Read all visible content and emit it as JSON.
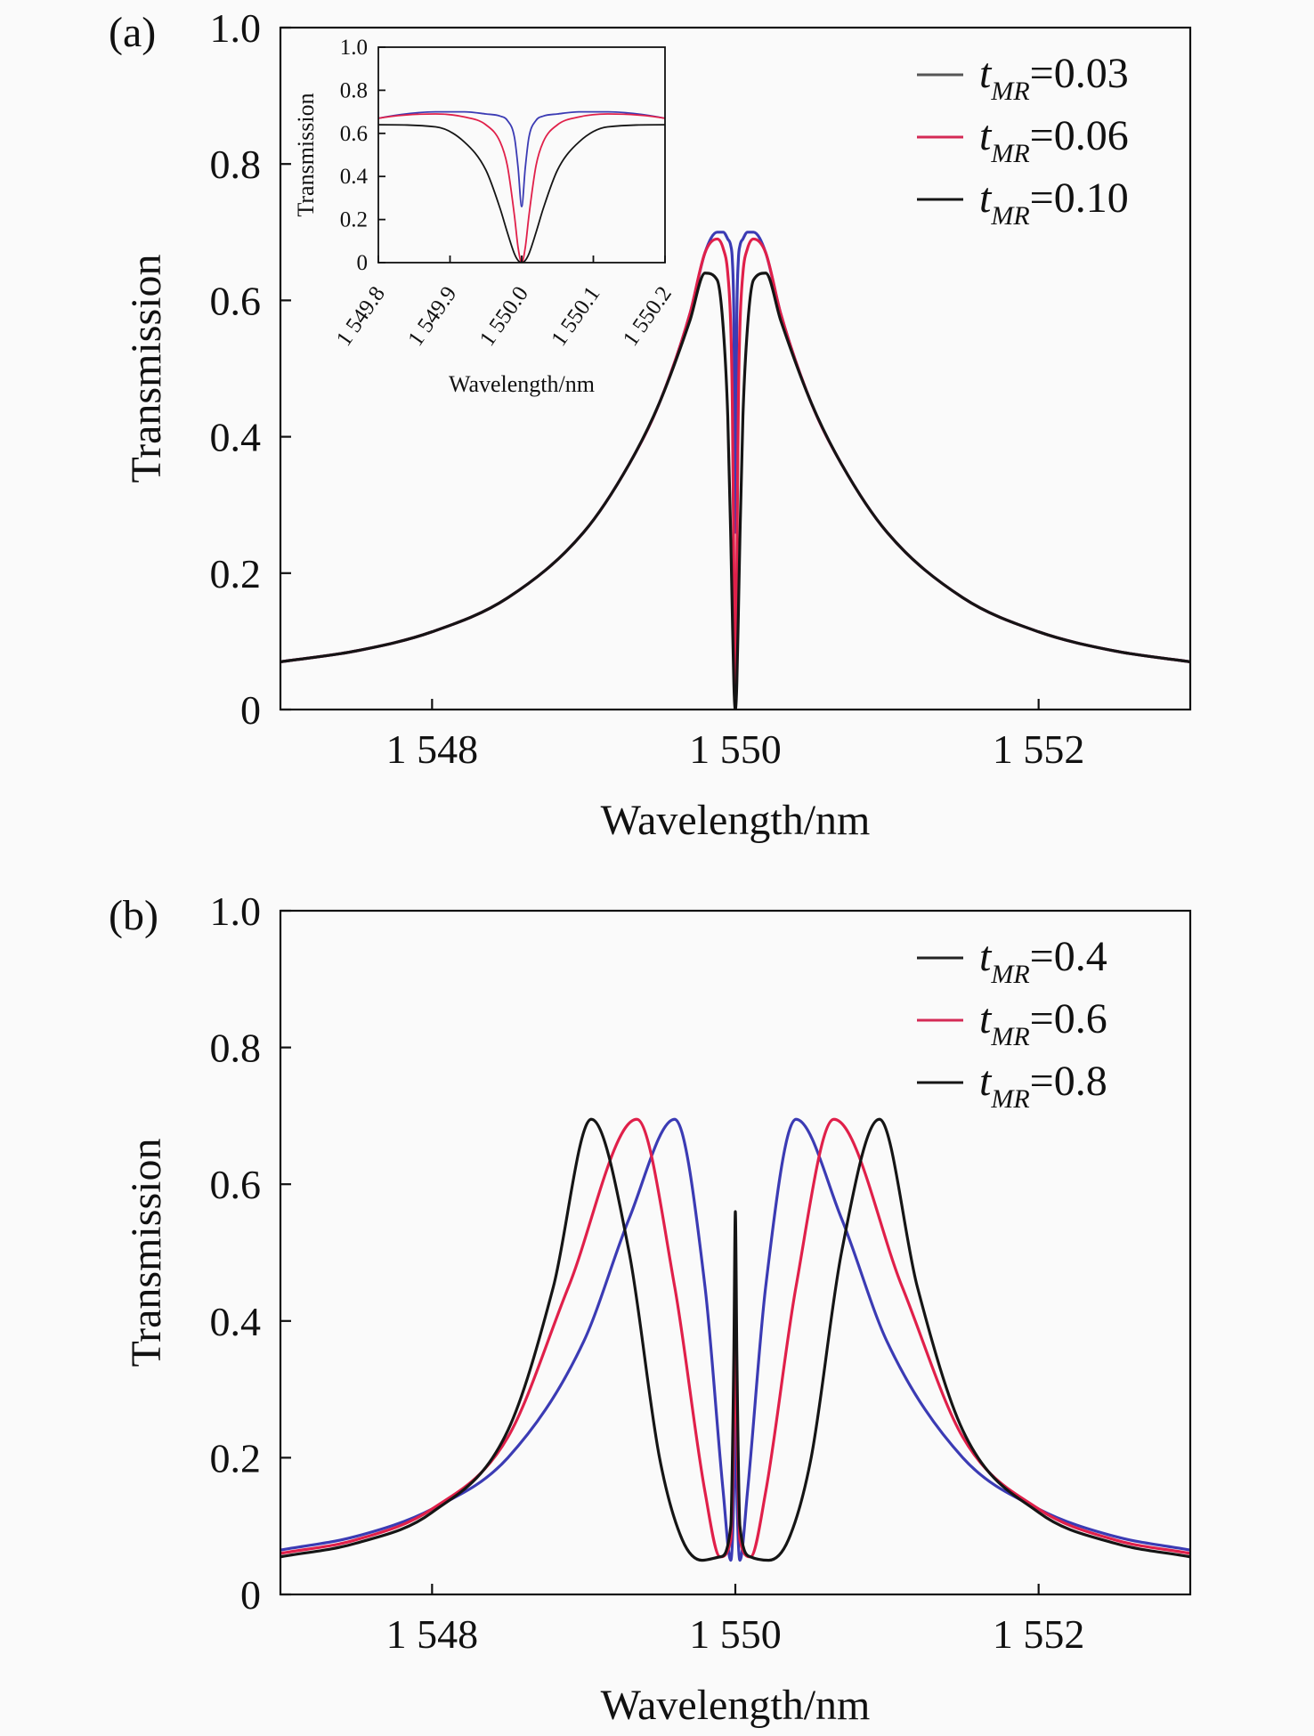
{
  "chart_data": [
    {
      "panel_label": "(a)",
      "type": "line",
      "xlabel": "Wavelength/nm",
      "ylabel": "Transmission",
      "xlim": [
        1547,
        1553
      ],
      "ylim": [
        0,
        1.0
      ],
      "xticks": [
        {
          "v": 1548,
          "label": "1 548"
        },
        {
          "v": 1550,
          "label": "1 550"
        },
        {
          "v": 1552,
          "label": "1 552"
        }
      ],
      "yticks": [
        {
          "v": 0,
          "label": "0"
        },
        {
          "v": 0.2,
          "label": "0.2"
        },
        {
          "v": 0.4,
          "label": "0.4"
        },
        {
          "v": 0.6,
          "label": "0.6"
        },
        {
          "v": 0.8,
          "label": "0.8"
        },
        {
          "v": 1.0,
          "label": "1.0"
        }
      ],
      "grid": false,
      "legend_position": "top-right",
      "series": [
        {
          "name": {
            "var": "t",
            "sub": "MR",
            "value": "=0.03"
          },
          "color": "#3b3bb4",
          "legend_color": "#555555",
          "points": [
            [
              1547,
              0.07
            ],
            [
              1547.5,
              0.086
            ],
            [
              1548,
              0.114
            ],
            [
              1548.5,
              0.164
            ],
            [
              1549,
              0.26
            ],
            [
              1549.3,
              0.36
            ],
            [
              1549.5,
              0.45
            ],
            [
              1549.7,
              0.58
            ],
            [
              1549.8,
              0.67
            ],
            [
              1549.88,
              0.7
            ],
            [
              1549.92,
              0.7
            ],
            [
              1549.95,
              0.69
            ],
            [
              1549.97,
              0.68
            ],
            [
              1549.98,
              0.66
            ],
            [
              1549.99,
              0.58
            ],
            [
              1549.995,
              0.44
            ],
            [
              1550,
              0.26
            ],
            [
              1550.005,
              0.44
            ],
            [
              1550.01,
              0.58
            ],
            [
              1550.02,
              0.66
            ],
            [
              1550.03,
              0.68
            ],
            [
              1550.05,
              0.69
            ],
            [
              1550.08,
              0.7
            ],
            [
              1550.12,
              0.7
            ],
            [
              1550.2,
              0.67
            ],
            [
              1550.3,
              0.58
            ],
            [
              1550.5,
              0.45
            ],
            [
              1550.7,
              0.36
            ],
            [
              1551,
              0.26
            ],
            [
              1551.5,
              0.164
            ],
            [
              1552,
              0.114
            ],
            [
              1552.5,
              0.086
            ],
            [
              1553,
              0.07
            ]
          ]
        },
        {
          "name": {
            "var": "t",
            "sub": "MR",
            "value": "=0.06"
          },
          "color": "#e0204a",
          "legend_color": "#d42a55",
          "points": [
            [
              1547,
              0.07
            ],
            [
              1547.5,
              0.086
            ],
            [
              1548,
              0.114
            ],
            [
              1548.5,
              0.164
            ],
            [
              1549,
              0.26
            ],
            [
              1549.3,
              0.36
            ],
            [
              1549.5,
              0.45
            ],
            [
              1549.7,
              0.58
            ],
            [
              1549.8,
              0.67
            ],
            [
              1549.88,
              0.69
            ],
            [
              1549.92,
              0.676
            ],
            [
              1549.95,
              0.64
            ],
            [
              1549.97,
              0.56
            ],
            [
              1549.98,
              0.45
            ],
            [
              1549.99,
              0.215
            ],
            [
              1549.995,
              0.07
            ],
            [
              1550,
              0
            ],
            [
              1550.005,
              0.07
            ],
            [
              1550.01,
              0.215
            ],
            [
              1550.02,
              0.45
            ],
            [
              1550.03,
              0.56
            ],
            [
              1550.05,
              0.64
            ],
            [
              1550.08,
              0.676
            ],
            [
              1550.12,
              0.69
            ],
            [
              1550.2,
              0.67
            ],
            [
              1550.3,
              0.58
            ],
            [
              1550.5,
              0.45
            ],
            [
              1550.7,
              0.36
            ],
            [
              1551,
              0.26
            ],
            [
              1551.5,
              0.164
            ],
            [
              1552,
              0.114
            ],
            [
              1552.5,
              0.086
            ],
            [
              1553,
              0.07
            ]
          ]
        },
        {
          "name": {
            "var": "t",
            "sub": "MR",
            "value": "=0.10"
          },
          "color": "#151515",
          "legend_color": "#151515",
          "points": [
            [
              1547,
              0.07
            ],
            [
              1547.5,
              0.086
            ],
            [
              1548,
              0.114
            ],
            [
              1548.5,
              0.164
            ],
            [
              1549,
              0.26
            ],
            [
              1549.3,
              0.36
            ],
            [
              1549.5,
              0.45
            ],
            [
              1549.7,
              0.57
            ],
            [
              1549.8,
              0.64
            ],
            [
              1549.88,
              0.63
            ],
            [
              1549.92,
              0.56
            ],
            [
              1549.95,
              0.43
            ],
            [
              1549.97,
              0.25
            ],
            [
              1549.98,
              0.14
            ],
            [
              1549.99,
              0.04
            ],
            [
              1549.995,
              0.01
            ],
            [
              1550,
              0
            ],
            [
              1550.005,
              0.01
            ],
            [
              1550.01,
              0.04
            ],
            [
              1550.02,
              0.14
            ],
            [
              1550.03,
              0.25
            ],
            [
              1550.05,
              0.43
            ],
            [
              1550.08,
              0.56
            ],
            [
              1550.12,
              0.63
            ],
            [
              1550.2,
              0.64
            ],
            [
              1550.3,
              0.57
            ],
            [
              1550.5,
              0.45
            ],
            [
              1550.7,
              0.36
            ],
            [
              1551,
              0.26
            ],
            [
              1551.5,
              0.164
            ],
            [
              1552,
              0.114
            ],
            [
              1552.5,
              0.086
            ],
            [
              1553,
              0.07
            ]
          ]
        }
      ],
      "inset": {
        "xlabel": "Wavelength/nm",
        "ylabel": "Transmission",
        "xlim": [
          1549.8,
          1550.2
        ],
        "ylim": [
          0,
          1.0
        ],
        "xticks": [
          {
            "v": 1549.8,
            "label": "1 549.8"
          },
          {
            "v": 1549.9,
            "label": "1 549.9"
          },
          {
            "v": 1550.0,
            "label": "1 550.0"
          },
          {
            "v": 1550.1,
            "label": "1 550.1"
          },
          {
            "v": 1550.2,
            "label": "1 550.2"
          }
        ],
        "yticks": [
          {
            "v": 0,
            "label": "0"
          },
          {
            "v": 0.2,
            "label": "0.2"
          },
          {
            "v": 0.4,
            "label": "0.4"
          },
          {
            "v": 0.6,
            "label": "0.6"
          },
          {
            "v": 0.8,
            "label": "0.8"
          },
          {
            "v": 1.0,
            "label": "1.0"
          }
        ]
      }
    },
    {
      "panel_label": "(b)",
      "type": "line",
      "xlabel": "Wavelength/nm",
      "ylabel": "Transmission",
      "xlim": [
        1547,
        1553
      ],
      "ylim": [
        0,
        1.0
      ],
      "xticks": [
        {
          "v": 1548,
          "label": "1 548"
        },
        {
          "v": 1550,
          "label": "1 550"
        },
        {
          "v": 1552,
          "label": "1 552"
        }
      ],
      "yticks": [
        {
          "v": 0,
          "label": "0"
        },
        {
          "v": 0.2,
          "label": "0.2"
        },
        {
          "v": 0.4,
          "label": "0.4"
        },
        {
          "v": 0.6,
          "label": "0.6"
        },
        {
          "v": 0.8,
          "label": "0.8"
        },
        {
          "v": 1.0,
          "label": "1.0"
        }
      ],
      "grid": false,
      "legend_position": "top-right",
      "series": [
        {
          "name": {
            "var": "t",
            "sub": "MR",
            "value": "=0.4"
          },
          "color": "#3b3bb4",
          "legend_color": "#222222",
          "points": [
            [
              1547,
              0.065
            ],
            [
              1547.5,
              0.085
            ],
            [
              1548,
              0.125
            ],
            [
              1548.5,
              0.2
            ],
            [
              1549,
              0.37
            ],
            [
              1549.3,
              0.55
            ],
            [
              1549.6,
              0.695
            ],
            [
              1549.8,
              0.45
            ],
            [
              1549.92,
              0.15
            ],
            [
              1549.97,
              0.05
            ],
            [
              1549.99,
              0.15
            ],
            [
              1550,
              0.3
            ],
            [
              1550.01,
              0.15
            ],
            [
              1550.03,
              0.05
            ],
            [
              1550.08,
              0.15
            ],
            [
              1550.2,
              0.45
            ],
            [
              1550.4,
              0.695
            ],
            [
              1550.7,
              0.55
            ],
            [
              1551,
              0.37
            ],
            [
              1551.5,
              0.2
            ],
            [
              1552,
              0.125
            ],
            [
              1552.5,
              0.085
            ],
            [
              1553,
              0.065
            ]
          ]
        },
        {
          "name": {
            "var": "t",
            "sub": "MR",
            "value": "=0.6"
          },
          "color": "#e0204a",
          "legend_color": "#d42a55",
          "points": [
            [
              1547,
              0.06
            ],
            [
              1547.5,
              0.08
            ],
            [
              1548,
              0.125
            ],
            [
              1548.5,
              0.23
            ],
            [
              1548.9,
              0.45
            ],
            [
              1549.35,
              0.695
            ],
            [
              1549.6,
              0.45
            ],
            [
              1549.8,
              0.15
            ],
            [
              1549.9,
              0.055
            ],
            [
              1549.97,
              0.08
            ],
            [
              1549.99,
              0.25
            ],
            [
              1550,
              0.4
            ],
            [
              1550.01,
              0.25
            ],
            [
              1550.03,
              0.08
            ],
            [
              1550.1,
              0.055
            ],
            [
              1550.2,
              0.15
            ],
            [
              1550.4,
              0.45
            ],
            [
              1550.65,
              0.695
            ],
            [
              1551.1,
              0.45
            ],
            [
              1551.5,
              0.23
            ],
            [
              1552,
              0.125
            ],
            [
              1552.5,
              0.08
            ],
            [
              1553,
              0.06
            ]
          ]
        },
        {
          "name": {
            "var": "t",
            "sub": "MR",
            "value": "=0.8"
          },
          "color": "#151515",
          "legend_color": "#151515",
          "points": [
            [
              1547,
              0.055
            ],
            [
              1547.5,
              0.075
            ],
            [
              1548,
              0.12
            ],
            [
              1548.5,
              0.24
            ],
            [
              1548.8,
              0.45
            ],
            [
              1549.05,
              0.695
            ],
            [
              1549.3,
              0.5
            ],
            [
              1549.5,
              0.2
            ],
            [
              1549.65,
              0.08
            ],
            [
              1549.78,
              0.05
            ],
            [
              1549.9,
              0.055
            ],
            [
              1549.97,
              0.1
            ],
            [
              1549.99,
              0.35
            ],
            [
              1550,
              0.56
            ],
            [
              1550.01,
              0.35
            ],
            [
              1550.03,
              0.1
            ],
            [
              1550.1,
              0.055
            ],
            [
              1550.22,
              0.05
            ],
            [
              1550.35,
              0.08
            ],
            [
              1550.5,
              0.2
            ],
            [
              1550.7,
              0.5
            ],
            [
              1550.95,
              0.695
            ],
            [
              1551.2,
              0.45
            ],
            [
              1551.5,
              0.24
            ],
            [
              1552,
              0.12
            ],
            [
              1552.5,
              0.075
            ],
            [
              1553,
              0.055
            ]
          ]
        }
      ]
    }
  ]
}
